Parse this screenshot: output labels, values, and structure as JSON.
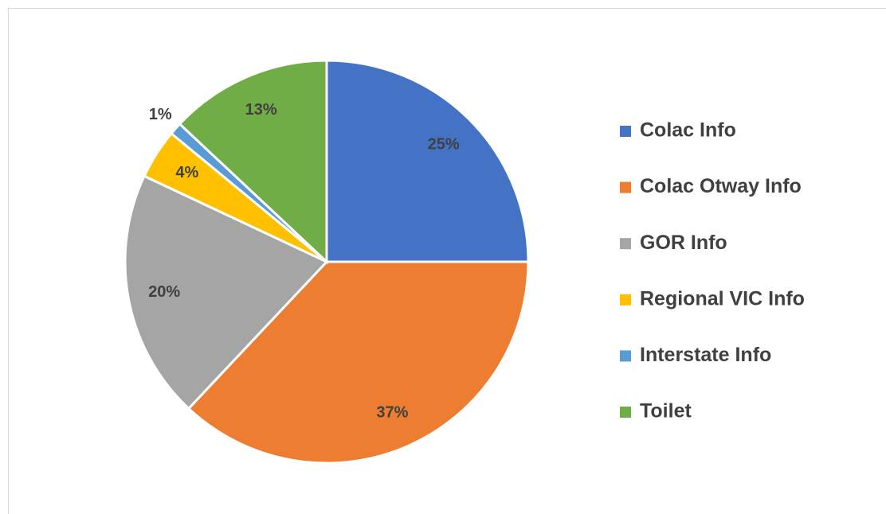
{
  "chart_data": {
    "type": "pie",
    "categories": [
      "Colac Info",
      "Colac Otway Info",
      "GOR Info",
      "Regional VIC Info",
      "Interstate Info",
      "Toilet"
    ],
    "values": [
      25,
      37,
      20,
      4,
      1,
      13
    ],
    "value_labels": [
      "25%",
      "37%",
      "20%",
      "4%",
      "1%",
      "13%"
    ],
    "colors": [
      "#4472c4",
      "#ed7d31",
      "#a5a5a5",
      "#ffc000",
      "#5b9bd5",
      "#70ad47"
    ],
    "legend": "right"
  }
}
